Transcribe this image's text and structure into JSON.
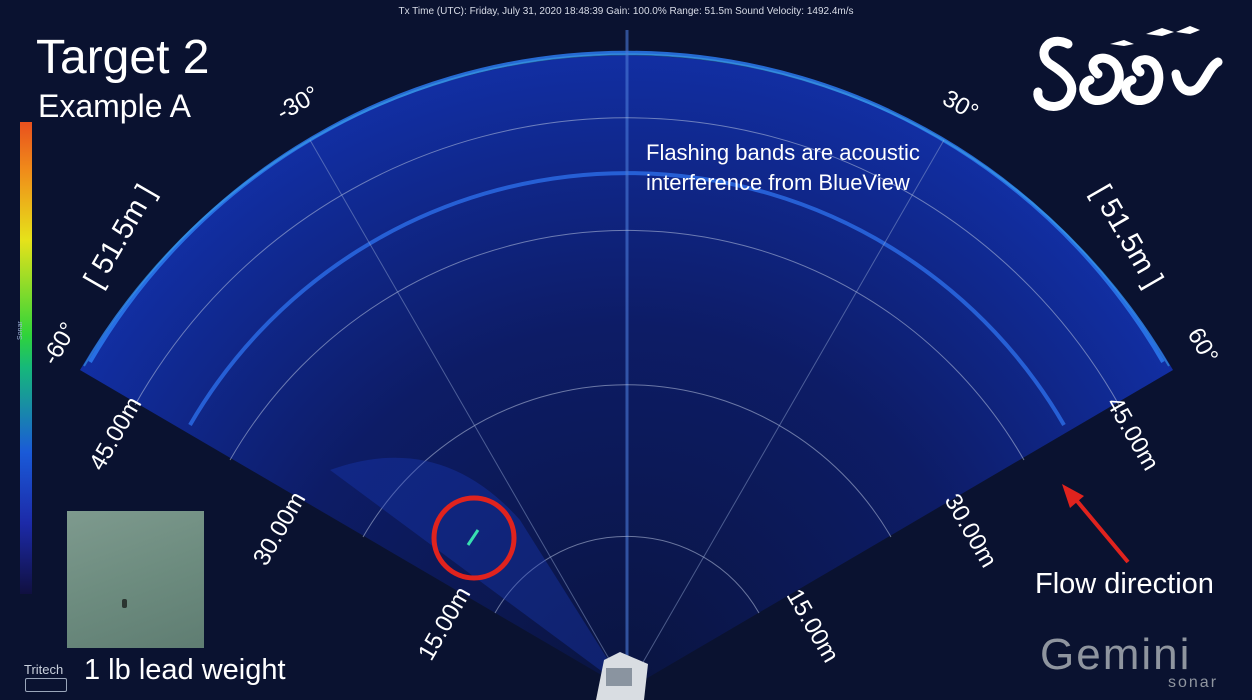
{
  "header": {
    "status_text": "Tx Time (UTC): Friday, July 31, 2020 18:48:39   Gain: 100.0%   Range: 51.5m   Sound Velocity: 1492.4m/s"
  },
  "title": {
    "line1": "Target 2",
    "line2": "Example A"
  },
  "annotation": {
    "line1": "Flashing bands are acoustic",
    "line2": "interference from BlueView"
  },
  "sonar": {
    "range_left": "[ 51.5m ]",
    "range_right": "[ 51.5m ]",
    "angles": {
      "left_edge": "-60°",
      "left_mid": "-30°",
      "right_mid": "30°",
      "right_edge": "60°"
    },
    "left_ranges": [
      "15.00m",
      "30.00m",
      "45.00m"
    ],
    "right_ranges": [
      "15.00m",
      "30.00m",
      "45.00m"
    ],
    "colorbar_label": "Sonar"
  },
  "inset": {
    "caption": "1 lb lead weight"
  },
  "flow": {
    "label": "Flow direction",
    "arrow_color": "#e0231e"
  },
  "branding": {
    "tritech": "Tritech",
    "gemini": "Gemini",
    "sonar": "sonar"
  },
  "colors": {
    "background": "#0a1230",
    "fan": "#0b1a6a",
    "echo": "#2a6ef0",
    "target_ring": "#e0231e"
  }
}
